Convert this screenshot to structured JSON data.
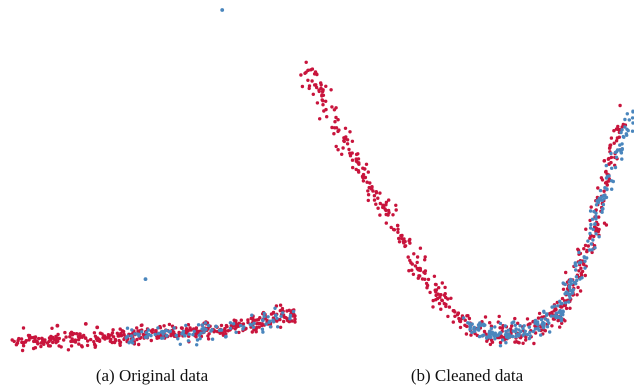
{
  "colors": {
    "red": "#c8143c",
    "blue": "#4a86bd"
  },
  "chart_data": [
    {
      "type": "scatter",
      "caption": "(a) Original data",
      "axes_visible": false,
      "grid": false,
      "xlim": [
        0,
        1
      ],
      "ylim": [
        0,
        1
      ],
      "series": [
        {
          "color": "#c8143c",
          "shape": "flat curve near bottom, rising slightly to the right",
          "curve": [
            [
              0.0,
              0.04
            ],
            [
              0.2,
              0.045
            ],
            [
              0.4,
              0.055
            ],
            [
              0.6,
              0.065
            ],
            [
              0.8,
              0.08
            ],
            [
              1.0,
              0.12
            ]
          ],
          "spread": 0.012,
          "outliers": [
            [
              0.26,
              0.09
            ],
            [
              0.16,
              0.085
            ],
            [
              0.3,
              0.08
            ]
          ]
        },
        {
          "color": "#4a86bd",
          "shape": "points concentrated at the right end of the same curve",
          "curve": [
            [
              0.4,
              0.055
            ],
            [
              0.6,
              0.065
            ],
            [
              0.8,
              0.08
            ],
            [
              1.0,
              0.12
            ]
          ],
          "spread": 0.012,
          "outliers": [
            [
              0.74,
              1.0
            ],
            [
              0.47,
              0.22
            ]
          ]
        }
      ]
    },
    {
      "type": "scatter",
      "caption": "(b) Cleaned data",
      "axes_visible": false,
      "grid": false,
      "xlim": [
        0,
        1
      ],
      "ylim": [
        0,
        1
      ],
      "series": [
        {
          "color": "#c8143c",
          "shape": "asymmetric U-shaped curve",
          "curve": [
            [
              0.02,
              0.97
            ],
            [
              0.1,
              0.8
            ],
            [
              0.2,
              0.6
            ],
            [
              0.3,
              0.4
            ],
            [
              0.4,
              0.22
            ],
            [
              0.5,
              0.1
            ],
            [
              0.6,
              0.065
            ],
            [
              0.7,
              0.085
            ],
            [
              0.78,
              0.15
            ],
            [
              0.86,
              0.35
            ],
            [
              0.92,
              0.6
            ],
            [
              0.96,
              0.8
            ]
          ],
          "spread": 0.02
        },
        {
          "color": "#4a86bd",
          "shape": "points along the lower and right parts of the curve",
          "curve": [
            [
              0.5,
              0.1
            ],
            [
              0.6,
              0.065
            ],
            [
              0.7,
              0.085
            ],
            [
              0.78,
              0.15
            ],
            [
              0.86,
              0.35
            ],
            [
              0.92,
              0.6
            ],
            [
              1.0,
              0.82
            ]
          ],
          "spread": 0.015
        }
      ]
    }
  ]
}
